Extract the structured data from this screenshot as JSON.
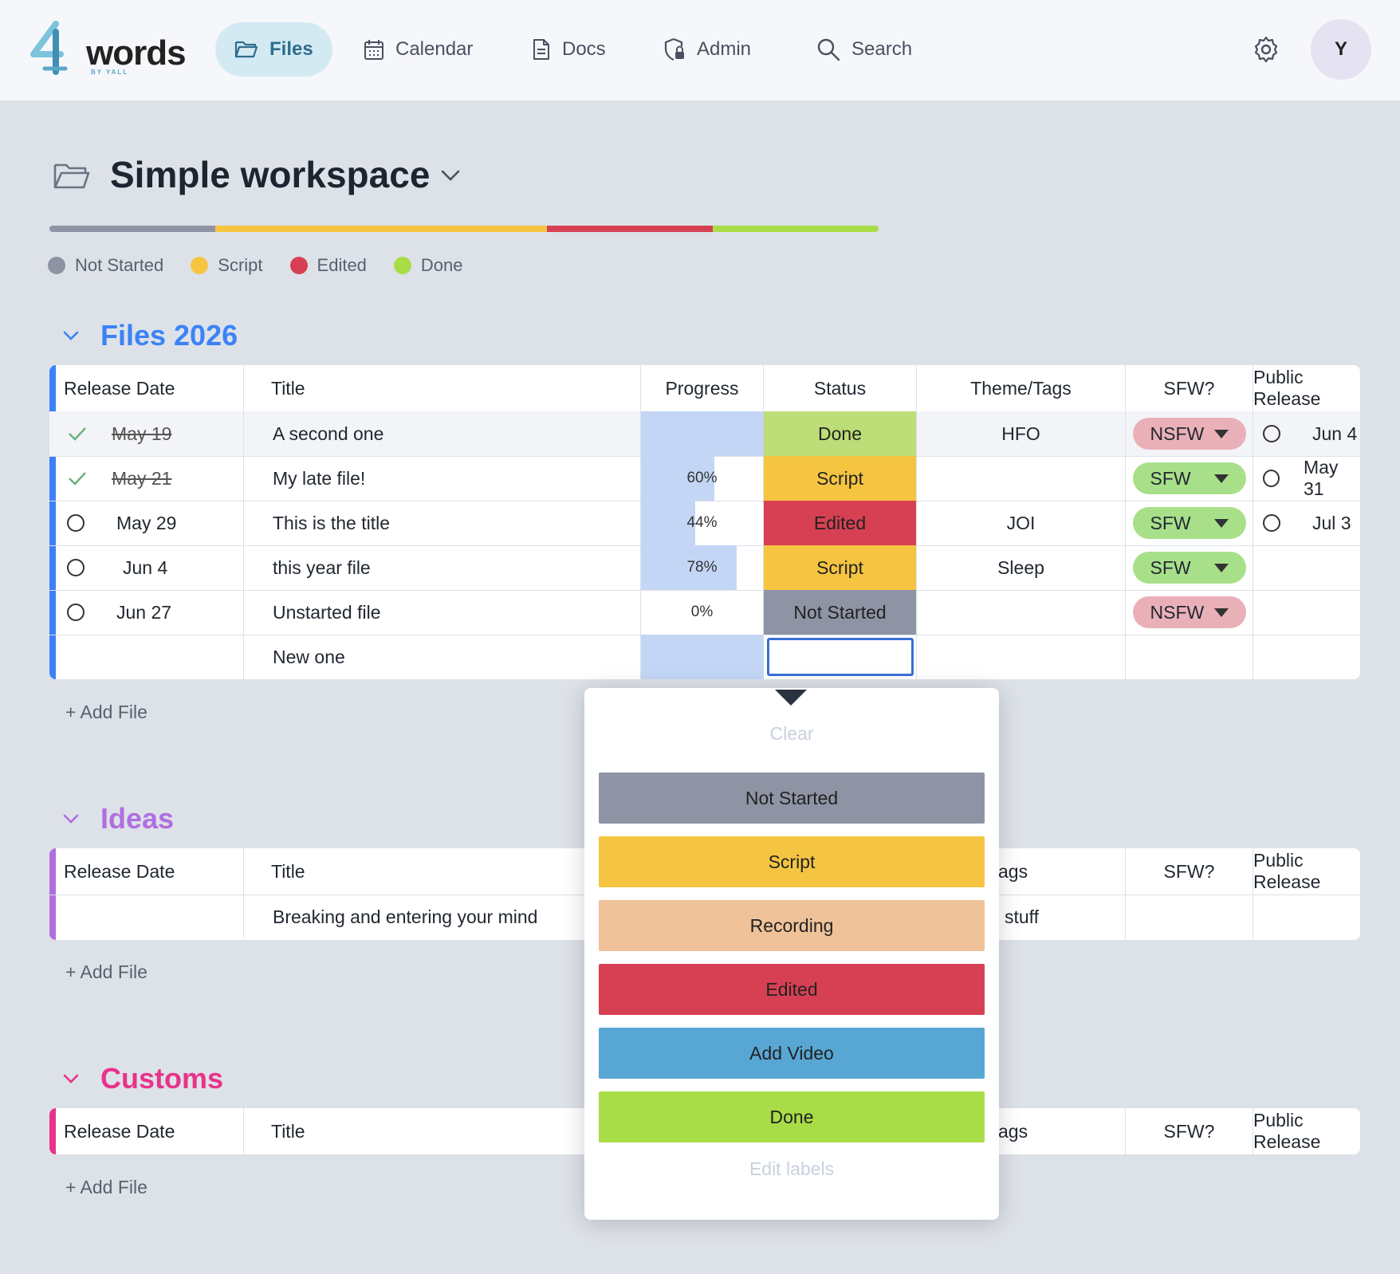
{
  "app": {
    "logo_text": "words",
    "logo_sub": "BY YALL"
  },
  "nav": {
    "files": "Files",
    "calendar": "Calendar",
    "docs": "Docs",
    "admin": "Admin",
    "search_placeholder": "Search"
  },
  "user": {
    "avatar_initial": "Y"
  },
  "workspace": {
    "title": "Simple workspace"
  },
  "status_colors": {
    "not_started": "#8e94a4",
    "script": "#f5c542",
    "recording": "#efc29a",
    "edited": "#d74053",
    "add_video": "#58a6d4",
    "done": "#a9dd47"
  },
  "progress_bar": [
    {
      "status": "Not Started",
      "fraction": 0.2
    },
    {
      "status": "Script",
      "fraction": 0.4
    },
    {
      "status": "Edited",
      "fraction": 0.2
    },
    {
      "status": "Done",
      "fraction": 0.2
    }
  ],
  "legend": [
    "Not Started",
    "Script",
    "Edited",
    "Done"
  ],
  "columns": {
    "release_date": "Release Date",
    "title": "Title",
    "progress": "Progress",
    "status": "Status",
    "theme_tags": "Theme/Tags",
    "theme_tags_partial": "ags",
    "sfw": "SFW?",
    "public_release": "Public Release"
  },
  "sections": [
    {
      "name": "Files 2026",
      "color": "#3b82f6",
      "rows": [
        {
          "done": true,
          "date": "May 19",
          "title": "A second one",
          "progress": 1.0,
          "progress_label": "",
          "status": "Done",
          "tags": "HFO",
          "sfw": "NSFW",
          "public": "Jun 4"
        },
        {
          "done": true,
          "date": "May 21",
          "title": "My late file!",
          "progress": 0.6,
          "progress_label": "60%",
          "status": "Script",
          "tags": "",
          "sfw": "SFW",
          "public": "May 31"
        },
        {
          "done": false,
          "date": "May 29",
          "title": "This is the title",
          "progress": 0.44,
          "progress_label": "44%",
          "status": "Edited",
          "tags": "JOI",
          "sfw": "SFW",
          "public": "Jul 3"
        },
        {
          "done": false,
          "date": "Jun 4",
          "title": "this year file",
          "progress": 0.78,
          "progress_label": "78%",
          "status": "Script",
          "tags": "Sleep",
          "sfw": "SFW",
          "public": ""
        },
        {
          "done": false,
          "date": "Jun 27",
          "title": "Unstarted file",
          "progress": 0.0,
          "progress_label": "0%",
          "status": "Not Started",
          "tags": "",
          "sfw": "NSFW",
          "public": ""
        },
        {
          "done": null,
          "date": "",
          "title": "New one",
          "progress": 1.0,
          "progress_label": "",
          "status": "",
          "tags": "",
          "sfw": "",
          "public": ""
        }
      ]
    },
    {
      "name": "Ideas",
      "color": "#b06ee0",
      "rows": [
        {
          "title": "Breaking and entering your mind",
          "tags_partial": "stuff"
        }
      ]
    },
    {
      "name": "Customs",
      "color": "#e8338a",
      "rows": []
    }
  ],
  "add_file_label": "+ Add File",
  "dropdown": {
    "clear": "Clear",
    "options": [
      "Not Started",
      "Script",
      "Recording",
      "Edited",
      "Add Video",
      "Done"
    ],
    "edit_labels": "Edit labels"
  }
}
